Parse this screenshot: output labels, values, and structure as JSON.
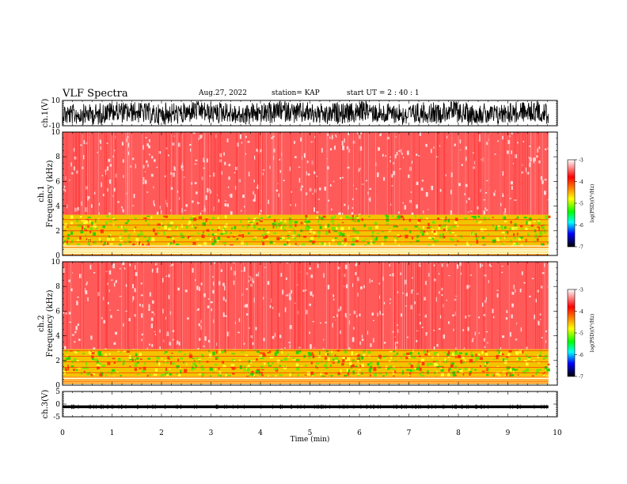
{
  "header": {
    "title": "VLF Spectra",
    "date": "Aug.27, 2022",
    "station": "station= KAP",
    "start": "start  UT =   2  : 40 : 1"
  },
  "chart_data": [
    {
      "id": "ch1-waveform",
      "type": "line",
      "ylabel": "ch.1(V)",
      "ylim": [
        -10,
        10
      ],
      "ytick_labels": [
        "10",
        "-10"
      ],
      "xlim": [
        0,
        10
      ],
      "signal": "dense noise waveform, mostly within +/-10 V",
      "data_end_min": 9.82
    },
    {
      "id": "ch1-spectrogram",
      "type": "heatmap",
      "ylabel": "ch.1\nFrequency  (kHz)",
      "ylim": [
        0,
        10
      ],
      "ytick_labels": [
        "0",
        "2",
        "4",
        "6",
        "8",
        "10"
      ],
      "xlim": [
        0,
        10
      ],
      "data_end_min": 9.82,
      "colorbar": {
        "label": "log(PSD)(V²/Hz)",
        "range": [
          -7,
          -3
        ],
        "tick_labels": [
          "-3",
          "-4",
          "-5",
          "-6",
          "-7"
        ]
      },
      "bands": [
        {
          "from_khz": 0,
          "to_khz": 0.8,
          "level": "bright horizontal lines (yellow/white)"
        },
        {
          "from_khz": 0.8,
          "to_khz": 3.3,
          "level": "high power, yellow/green (approx -4.5 to -5.3)"
        },
        {
          "from_khz": 3.3,
          "to_khz": 10,
          "level": "moderate power, red (approx -3.8)"
        }
      ]
    },
    {
      "id": "ch2-spectrogram",
      "type": "heatmap",
      "ylabel": "ch.2\nFrequency  (kHz)",
      "ylim": [
        0,
        10
      ],
      "ytick_labels": [
        "0",
        "2",
        "4",
        "6",
        "8",
        "10"
      ],
      "xlim": [
        0,
        10
      ],
      "data_end_min": 9.82,
      "colorbar": {
        "label": "log(PSD)(V²/Hz)",
        "range": [
          -7,
          -3
        ],
        "tick_labels": [
          "-3",
          "-4",
          "-5",
          "-6",
          "-7"
        ]
      },
      "bands": [
        {
          "from_khz": 0,
          "to_khz": 0.7,
          "level": "bright horizontal lines (yellow/white)"
        },
        {
          "from_khz": 0.7,
          "to_khz": 2.9,
          "level": "high power, yellow/green (approx -4.5 to -5.3)"
        },
        {
          "from_khz": 2.9,
          "to_khz": 10,
          "level": "moderate power, red (approx -3.8)"
        }
      ]
    },
    {
      "id": "ch3-waveform",
      "type": "line",
      "ylabel": "ch.3(V)",
      "ylim": [
        -5,
        5
      ],
      "ytick_labels": [
        "5",
        "0",
        "-5"
      ],
      "xlim": [
        0,
        10
      ],
      "signal": "narrow band near -1 V",
      "data_end_min": 9.82
    }
  ],
  "x_axis": {
    "label": "Time  (min)",
    "tick_labels": [
      "0",
      "1",
      "2",
      "3",
      "4",
      "5",
      "6",
      "7",
      "8",
      "9",
      "10"
    ]
  },
  "colormap": [
    "#ffffff",
    "#ff0000",
    "#ffff00",
    "#00ff00",
    "#00ffff",
    "#0000ff",
    "#000000"
  ]
}
